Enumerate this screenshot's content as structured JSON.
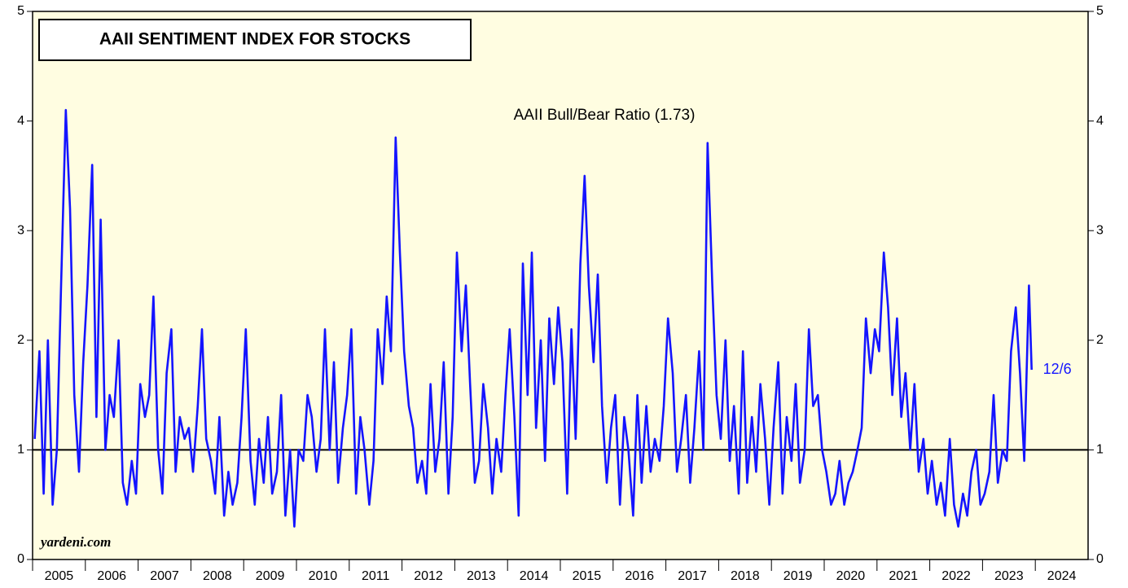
{
  "chart_data": {
    "type": "line",
    "title": "AAII SENTIMENT INDEX FOR STOCKS",
    "source": "yardeni.com",
    "end_label": "12/6",
    "reference_line": 1,
    "background": "#fffde1",
    "xlim": [
      2005,
      2025
    ],
    "xticks": [
      {
        "value": 2005,
        "label": "2005"
      },
      {
        "value": 2006,
        "label": "2006"
      },
      {
        "value": 2007,
        "label": "2007"
      },
      {
        "value": 2008,
        "label": "2008"
      },
      {
        "value": 2009,
        "label": "2009"
      },
      {
        "value": 2010,
        "label": "2010"
      },
      {
        "value": 2011,
        "label": "2011"
      },
      {
        "value": 2012,
        "label": "2012"
      },
      {
        "value": 2013,
        "label": "2013"
      },
      {
        "value": 2014,
        "label": "2014"
      },
      {
        "value": 2015,
        "label": "2015"
      },
      {
        "value": 2016,
        "label": "2016"
      },
      {
        "value": 2017,
        "label": "2017"
      },
      {
        "value": 2018,
        "label": "2018"
      },
      {
        "value": 2019,
        "label": "2019"
      },
      {
        "value": 2020,
        "label": "2020"
      },
      {
        "value": 2021,
        "label": "2021"
      },
      {
        "value": 2022,
        "label": "2022"
      },
      {
        "value": 2023,
        "label": "2023"
      },
      {
        "value": 2024,
        "label": "2024"
      }
    ],
    "ylim": [
      0,
      5
    ],
    "yticks": [
      0,
      1,
      2,
      3,
      4,
      5
    ],
    "series": [
      {
        "name": "AAII Bull/Bear Ratio (1.73)",
        "color": "#1414ff",
        "x": [
          2005.04,
          2005.13,
          2005.21,
          2005.29,
          2005.38,
          2005.46,
          2005.54,
          2005.63,
          2005.71,
          2005.79,
          2005.88,
          2005.96,
          2006.04,
          2006.13,
          2006.21,
          2006.29,
          2006.38,
          2006.46,
          2006.54,
          2006.63,
          2006.71,
          2006.79,
          2006.88,
          2006.96,
          2007.04,
          2007.13,
          2007.21,
          2007.29,
          2007.38,
          2007.46,
          2007.54,
          2007.63,
          2007.71,
          2007.79,
          2007.88,
          2007.96,
          2008.04,
          2008.13,
          2008.21,
          2008.29,
          2008.38,
          2008.46,
          2008.54,
          2008.63,
          2008.71,
          2008.79,
          2008.88,
          2008.96,
          2009.04,
          2009.13,
          2009.21,
          2009.29,
          2009.38,
          2009.46,
          2009.54,
          2009.63,
          2009.71,
          2009.79,
          2009.88,
          2009.96,
          2010.04,
          2010.13,
          2010.21,
          2010.29,
          2010.38,
          2010.46,
          2010.54,
          2010.63,
          2010.71,
          2010.79,
          2010.88,
          2010.96,
          2011.04,
          2011.13,
          2011.21,
          2011.29,
          2011.38,
          2011.46,
          2011.54,
          2011.63,
          2011.71,
          2011.79,
          2011.88,
          2011.96,
          2012.04,
          2012.13,
          2012.21,
          2012.29,
          2012.38,
          2012.46,
          2012.54,
          2012.63,
          2012.71,
          2012.79,
          2012.88,
          2012.96,
          2013.04,
          2013.13,
          2013.21,
          2013.29,
          2013.38,
          2013.46,
          2013.54,
          2013.63,
          2013.71,
          2013.79,
          2013.88,
          2013.96,
          2014.04,
          2014.13,
          2014.21,
          2014.29,
          2014.38,
          2014.46,
          2014.54,
          2014.63,
          2014.71,
          2014.79,
          2014.88,
          2014.96,
          2015.04,
          2015.13,
          2015.21,
          2015.29,
          2015.38,
          2015.46,
          2015.54,
          2015.63,
          2015.71,
          2015.79,
          2015.88,
          2015.96,
          2016.04,
          2016.13,
          2016.21,
          2016.29,
          2016.38,
          2016.46,
          2016.54,
          2016.63,
          2016.71,
          2016.79,
          2016.88,
          2016.96,
          2017.04,
          2017.13,
          2017.21,
          2017.29,
          2017.38,
          2017.46,
          2017.54,
          2017.63,
          2017.71,
          2017.79,
          2017.88,
          2017.96,
          2018.04,
          2018.13,
          2018.21,
          2018.29,
          2018.38,
          2018.46,
          2018.54,
          2018.63,
          2018.71,
          2018.79,
          2018.88,
          2018.96,
          2019.04,
          2019.13,
          2019.21,
          2019.29,
          2019.38,
          2019.46,
          2019.54,
          2019.63,
          2019.71,
          2019.79,
          2019.88,
          2019.96,
          2020.04,
          2020.13,
          2020.21,
          2020.29,
          2020.38,
          2020.46,
          2020.54,
          2020.63,
          2020.71,
          2020.79,
          2020.88,
          2020.96,
          2021.04,
          2021.13,
          2021.21,
          2021.29,
          2021.38,
          2021.46,
          2021.54,
          2021.63,
          2021.71,
          2021.79,
          2021.88,
          2021.96,
          2022.04,
          2022.13,
          2022.21,
          2022.29,
          2022.38,
          2022.46,
          2022.54,
          2022.63,
          2022.71,
          2022.79,
          2022.88,
          2022.96,
          2023.04,
          2023.13,
          2023.21,
          2023.29,
          2023.38,
          2023.46,
          2023.54,
          2023.63,
          2023.71,
          2023.79,
          2023.88,
          2023.93
        ],
        "values": [
          1.1,
          1.9,
          0.6,
          2.0,
          0.5,
          1.0,
          2.5,
          4.1,
          3.2,
          1.5,
          0.8,
          1.8,
          2.5,
          3.6,
          1.3,
          3.1,
          1.0,
          1.5,
          1.3,
          2.0,
          0.7,
          0.5,
          0.9,
          0.6,
          1.6,
          1.3,
          1.5,
          2.4,
          1.0,
          0.6,
          1.7,
          2.1,
          0.8,
          1.3,
          1.1,
          1.2,
          0.8,
          1.4,
          2.1,
          1.1,
          0.9,
          0.6,
          1.3,
          0.4,
          0.8,
          0.5,
          0.7,
          1.3,
          2.1,
          0.9,
          0.5,
          1.1,
          0.7,
          1.3,
          0.6,
          0.8,
          1.5,
          0.4,
          1.0,
          0.3,
          1.0,
          0.9,
          1.5,
          1.3,
          0.8,
          1.1,
          2.1,
          1.0,
          1.8,
          0.7,
          1.2,
          1.5,
          2.1,
          0.6,
          1.3,
          1.0,
          0.5,
          0.9,
          2.1,
          1.6,
          2.4,
          1.9,
          3.85,
          2.8,
          1.9,
          1.4,
          1.2,
          0.7,
          0.9,
          0.6,
          1.6,
          0.8,
          1.1,
          1.8,
          0.6,
          1.3,
          2.8,
          1.9,
          2.5,
          1.6,
          0.7,
          0.9,
          1.6,
          1.2,
          0.6,
          1.1,
          0.8,
          1.5,
          2.1,
          1.3,
          0.4,
          2.7,
          1.5,
          2.8,
          1.2,
          2.0,
          0.9,
          2.2,
          1.6,
          2.3,
          1.8,
          0.6,
          2.1,
          1.1,
          2.7,
          3.5,
          2.5,
          1.8,
          2.6,
          1.4,
          0.7,
          1.2,
          1.5,
          0.5,
          1.3,
          1.0,
          0.4,
          1.5,
          0.7,
          1.4,
          0.8,
          1.1,
          0.9,
          1.4,
          2.2,
          1.7,
          0.8,
          1.1,
          1.5,
          0.7,
          1.2,
          1.9,
          1.0,
          3.8,
          2.5,
          1.5,
          1.1,
          2.0,
          0.9,
          1.4,
          0.6,
          1.9,
          0.7,
          1.3,
          0.8,
          1.6,
          1.1,
          0.5,
          1.2,
          1.8,
          0.6,
          1.3,
          0.9,
          1.6,
          0.7,
          1.0,
          2.1,
          1.4,
          1.5,
          1.0,
          0.8,
          0.5,
          0.6,
          0.9,
          0.5,
          0.7,
          0.8,
          1.0,
          1.2,
          2.2,
          1.7,
          2.1,
          1.9,
          2.8,
          2.3,
          1.5,
          2.2,
          1.3,
          1.7,
          1.0,
          1.6,
          0.8,
          1.1,
          0.6,
          0.9,
          0.5,
          0.7,
          0.4,
          1.1,
          0.5,
          0.3,
          0.6,
          0.4,
          0.8,
          1.0,
          0.5,
          0.6,
          0.8,
          1.5,
          0.7,
          1.0,
          0.9,
          1.9,
          2.3,
          1.7,
          0.9,
          2.5,
          1.73
        ]
      }
    ]
  }
}
